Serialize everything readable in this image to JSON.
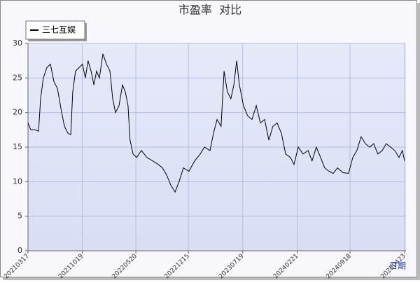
{
  "chart_data": {
    "type": "line",
    "title": "市盈率  对比",
    "x_label": "日期",
    "x": [
      "20210317",
      "20210328",
      "20210414",
      "20210428",
      "20210506",
      "20210517",
      "20210531",
      "20210614",
      "20210628",
      "20210712",
      "20210729",
      "20210809",
      "20210823",
      "20210903",
      "20210911",
      "20210922",
      "20211006",
      "20211020",
      "20211031",
      "20211111",
      "20211123",
      "20211204",
      "20211215",
      "20211226",
      "20220109",
      "20220123",
      "20220206",
      "20220217",
      "20220228",
      "20220314",
      "20220328",
      "20220408",
      "20220419",
      "20220427",
      "20220509",
      "20220523",
      "20220611",
      "20220703",
      "20220726",
      "20220817",
      "20220903",
      "20220919",
      "20221006",
      "20221023",
      "20221108",
      "20221125",
      "20221217",
      "20230109",
      "20230131",
      "20230217",
      "20230311",
      "20230325",
      "20230408",
      "20230424",
      "20230506",
      "20230519",
      "20230602",
      "20230614",
      "20230625",
      "20230706",
      "20230722",
      "20230808",
      "20230825",
      "20230911",
      "20230927",
      "20231014",
      "20231031",
      "20231116",
      "20231203",
      "20231220",
      "20240106",
      "20240125",
      "20240208",
      "20240225",
      "20240315",
      "20240404",
      "20240420",
      "20240507",
      "20240524",
      "20240609",
      "20240626",
      "20240713",
      "20240730",
      "20240821",
      "20240912",
      "20240929",
      "20241015",
      "20241101",
      "20241118",
      "20241205",
      "20241221",
      "20250107",
      "20250124",
      "20250209",
      "20250226",
      "20250315",
      "20250401",
      "20250414",
      "20250423"
    ],
    "series": [
      {
        "name": "三七互娱",
        "color": "#000000",
        "values": [
          18.5,
          17.5,
          17.5,
          17.3,
          22,
          25,
          26.5,
          27,
          24.5,
          23.5,
          20,
          18,
          17,
          16.8,
          23,
          26,
          26.5,
          27,
          25,
          27.5,
          26,
          24,
          26,
          25,
          28.5,
          27,
          26,
          22,
          20,
          21,
          24,
          23,
          21,
          16,
          14,
          13.5,
          14.5,
          13.5,
          13,
          12.5,
          12,
          11,
          9.5,
          8.5,
          10,
          12,
          11.5,
          13,
          14,
          15,
          14.5,
          17,
          19,
          18,
          26,
          23,
          22,
          24,
          27.5,
          24,
          21,
          19.5,
          19,
          21,
          18.5,
          19,
          16,
          18,
          18.5,
          17,
          14,
          13.5,
          12.5,
          15,
          14,
          14.5,
          13,
          15,
          13.5,
          12,
          11.5,
          11.2,
          12,
          11.3,
          11.2,
          13.5,
          14.5,
          16.5,
          15.5,
          15,
          15.5,
          14,
          14.5,
          15.5,
          15,
          14.5,
          13.5,
          14.5,
          13
        ]
      }
    ],
    "xlim": [
      "20210317",
      "20250423"
    ],
    "xticks": [
      "20210317",
      "20211019",
      "20220520",
      "20221215",
      "20230719",
      "20240221",
      "20240918",
      "20250423"
    ],
    "ylim": [
      0,
      30
    ],
    "yticks": [
      0,
      5,
      10,
      15,
      20,
      25,
      30
    ],
    "grid": true
  }
}
